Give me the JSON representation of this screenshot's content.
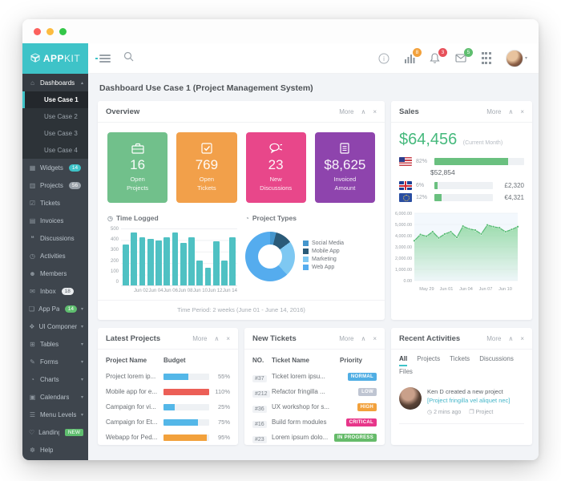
{
  "controls": {
    "more": "More"
  },
  "icons": {
    "collapse": "∧",
    "close": "×",
    "caret_up": "▴",
    "caret_down": "▾",
    "clock": "◷",
    "briefcase": "❒",
    "pie": "◔"
  },
  "brand": {
    "bold": "APP",
    "light": "KIT"
  },
  "topbar": {
    "badges": {
      "stats": "8",
      "bell": "3",
      "mail": "5"
    },
    "badge_colors": {
      "stats": "#f2a13c",
      "bell": "#e7505a",
      "mail": "#5fbe6f"
    }
  },
  "page": {
    "title": "Dashboard Use Case 1 (Project Management System)"
  },
  "sidebar": {
    "items": [
      {
        "name": "dashboards",
        "icon_name": "home-icon",
        "glyph": "⌂",
        "label": "Dashboards",
        "caret": "up",
        "open": true,
        "submenu": [
          {
            "label": "Use Case 1",
            "active": true
          },
          {
            "label": "Use Case 2",
            "active": false
          },
          {
            "label": "Use Case 3",
            "active": false
          },
          {
            "label": "Use Case 4",
            "active": false
          }
        ]
      },
      {
        "name": "widgets",
        "icon_name": "widgets-icon",
        "glyph": "▦",
        "label": "Widgets",
        "badge": {
          "text": "14",
          "style": "teal"
        }
      },
      {
        "name": "projects",
        "icon_name": "briefcase-icon",
        "glyph": "▥",
        "label": "Projects",
        "badge": {
          "text": "56",
          "style": "gray"
        }
      },
      {
        "name": "tickets",
        "icon_name": "ticket-icon",
        "glyph": "☑",
        "label": "Tickets"
      },
      {
        "name": "invoices",
        "icon_name": "invoice-icon",
        "glyph": "▤",
        "label": "Invoices"
      },
      {
        "name": "discussions",
        "icon_name": "chat-icon",
        "glyph": "❝",
        "label": "Discussions"
      },
      {
        "name": "activities",
        "icon_name": "activity-icon",
        "glyph": "◷",
        "label": "Activities"
      },
      {
        "name": "members",
        "icon_name": "users-icon",
        "glyph": "☻",
        "label": "Members"
      },
      {
        "name": "inbox",
        "icon_name": "mail-icon",
        "glyph": "✉",
        "label": "Inbox",
        "badge": {
          "text": "18",
          "style": "light"
        }
      },
      {
        "name": "app-pages",
        "icon_name": "pages-icon",
        "glyph": "❏",
        "label": "App Pages",
        "badge": {
          "text": "14",
          "style": "green"
        },
        "caret": "down"
      },
      {
        "name": "ui-components",
        "icon_name": "components-icon",
        "glyph": "❖",
        "label": "UI Components",
        "caret": "down"
      },
      {
        "name": "tables",
        "icon_name": "table-icon",
        "glyph": "⊞",
        "label": "Tables",
        "caret": "down"
      },
      {
        "name": "forms",
        "icon_name": "pencil-icon",
        "glyph": "✎",
        "label": "Forms",
        "caret": "down"
      },
      {
        "name": "charts",
        "icon_name": "pie-chart-icon",
        "glyph": "◔",
        "label": "Charts",
        "caret": "down"
      },
      {
        "name": "calendars",
        "icon_name": "calendar-icon",
        "glyph": "▣",
        "label": "Calendars",
        "caret": "down"
      },
      {
        "name": "menu-levels",
        "icon_name": "menu-icon",
        "glyph": "☰",
        "label": "Menu Levels",
        "caret": "down"
      },
      {
        "name": "landing-page",
        "icon_name": "heart-icon",
        "glyph": "♡",
        "label": "Landing Page",
        "badge": {
          "text": "NEW",
          "style": "new"
        }
      },
      {
        "name": "help",
        "icon_name": "life-ring-icon",
        "glyph": "☸",
        "label": "Help"
      }
    ]
  },
  "overview": {
    "title": "Overview",
    "tiles": [
      {
        "value": "16",
        "label": "Open\nProjects",
        "color": "#71c08b",
        "icon_name": "briefcase-icon"
      },
      {
        "value": "769",
        "label": "Open\nTickets",
        "color": "#f2a04a",
        "icon_name": "check-square-icon"
      },
      {
        "value": "23",
        "label": "New\nDiscussions",
        "color": "#e8478a",
        "icon_name": "chat-bubbles-icon"
      },
      {
        "value": "$8,625",
        "label": "Invoiced\nAmount",
        "color": "#8e44ad",
        "icon_name": "document-icon"
      }
    ],
    "time_logged_title": "Time Logged",
    "project_types_title": "Project Types",
    "footer": "Time Period: 2 weeks (June 01 - June 14, 2016)"
  },
  "chart_data": [
    {
      "id": "time-logged",
      "type": "bar",
      "title": "Time Logged",
      "categories": [
        "Jun 01",
        "Jun 02",
        "Jun 03",
        "Jun 04",
        "Jun 05",
        "Jun 06",
        "Jun 07",
        "Jun 08",
        "Jun 09",
        "Jun 10",
        "Jun 11",
        "Jun 12",
        "Jun 13",
        "Jun 14"
      ],
      "values": [
        355,
        460,
        415,
        400,
        390,
        420,
        455,
        370,
        415,
        215,
        155,
        385,
        215,
        420
      ],
      "x_tick_labels": [
        "Jun 02",
        "Jun 04",
        "Jun 06",
        "Jun 08",
        "Jun 10",
        "Jun 12",
        "Jun 14"
      ],
      "yticks": [
        "500",
        "400",
        "300",
        "200",
        "100",
        "0"
      ],
      "ylim": [
        0,
        500
      ],
      "bar_color": "#4fc1c3",
      "grid": true
    },
    {
      "id": "project-types",
      "type": "pie",
      "title": "Project Types",
      "donut": true,
      "legend_position": "right",
      "labels": [
        "Social Media",
        "Mobile App",
        "Marketing",
        "Web App"
      ],
      "values": [
        4,
        11,
        23,
        62
      ],
      "colors": [
        "#4596cd",
        "#2a5a78",
        "#7ec8f2",
        "#55acee"
      ]
    },
    {
      "id": "sales-trend",
      "type": "area",
      "title": "Sales (Current Month)",
      "values": [
        3550,
        4100,
        3950,
        4350,
        3800,
        4150,
        4350,
        3850,
        4850,
        4600,
        4500,
        4150,
        4950,
        4800,
        4700,
        4350,
        4550,
        4800
      ],
      "x_tick_labels": [
        "May 29",
        "Jun 01",
        "Jun 04",
        "Jun 07",
        "Jun 10"
      ],
      "yticks": [
        "6,000.00",
        "5,000.00",
        "4,000.00",
        "3,000.00",
        "2,000.00",
        "1,000.00",
        "0.00"
      ],
      "ylim": [
        0,
        6000
      ],
      "line_color": "#57bb74",
      "fill_color": "#8ed7a0",
      "grid": true
    }
  ],
  "sales": {
    "title": "Sales",
    "amount": "$64,456",
    "amount_note": "(Current Month)",
    "countries": [
      {
        "flag": "us",
        "flag_name": "usa-flag",
        "percent": "82%",
        "bar": 82,
        "value": "$52,854",
        "value_below": true
      },
      {
        "flag": "uk",
        "flag_name": "uk-flag",
        "percent": "6%",
        "bar": 6,
        "value": "£2,320",
        "value_below": false
      },
      {
        "flag": "eu",
        "flag_name": "eu-flag",
        "percent": "12%",
        "bar": 12,
        "value": "€4,321",
        "value_below": false
      }
    ]
  },
  "latest_projects": {
    "title": "Latest Projects",
    "columns": [
      "Project Name",
      "Budget"
    ],
    "rows": [
      {
        "name": "Project lorem ip...",
        "percent": 55,
        "label": "55%",
        "color": "#54b7e8"
      },
      {
        "name": "Mobile app for e...",
        "percent": 100,
        "label": "110%",
        "color": "#ec5f57"
      },
      {
        "name": "Campaign for vi...",
        "percent": 25,
        "label": "25%",
        "color": "#54b7e8"
      },
      {
        "name": "Campaign for Et...",
        "percent": 75,
        "label": "75%",
        "color": "#54b7e8"
      },
      {
        "name": "Webapp for Ped...",
        "percent": 95,
        "label": "95%",
        "color": "#f2a13c"
      }
    ]
  },
  "new_tickets": {
    "title": "New Tickets",
    "columns": [
      "NO.",
      "Ticket Name",
      "Priority"
    ],
    "rows": [
      {
        "no": "#37",
        "name": "Ticket lorem ipsu...",
        "priority": "NORMAL",
        "color": "#50aee4"
      },
      {
        "no": "#212",
        "name": "Refactor fringilla ...",
        "priority": "LOW",
        "color": "#bfc5d2"
      },
      {
        "no": "#36",
        "name": "UX workshop for s...",
        "priority": "HIGH",
        "color": "#f2a13c"
      },
      {
        "no": "#16",
        "name": "Build form modules",
        "priority": "CRITICAL",
        "color": "#e7368a"
      },
      {
        "no": "#23",
        "name": "Lorem ipsum dolo...",
        "priority": "IN PROGRESS",
        "color": "#66bb6a"
      }
    ]
  },
  "recent_activities": {
    "title": "Recent Activities",
    "tabs": [
      "All",
      "Projects",
      "Tickets",
      "Discussions",
      "Files"
    ],
    "active_tab": "All",
    "activity": {
      "user": "Ken D",
      "action": "created a new project",
      "link": "[Project fringilla vel aliquet nec]",
      "time": "2 mins ago",
      "type": "Project"
    }
  }
}
